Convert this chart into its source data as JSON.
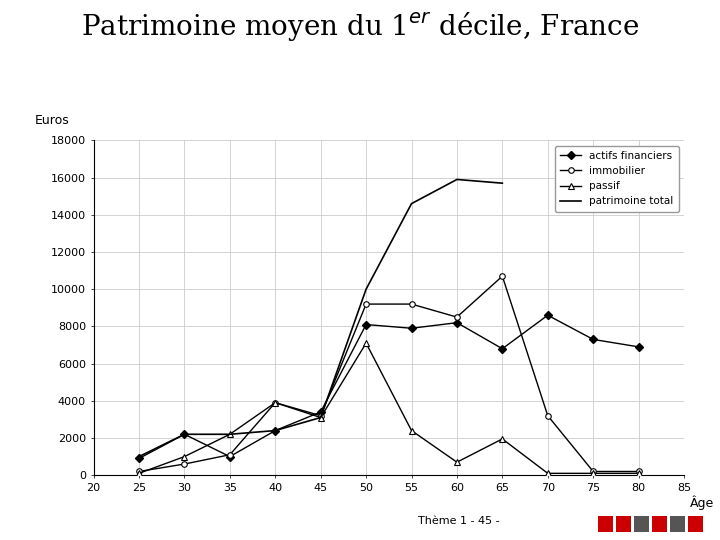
{
  "xlabel": "Âge",
  "ylabel": "Euros",
  "x": [
    20,
    25,
    30,
    35,
    40,
    45,
    50,
    55,
    60,
    65,
    70,
    75,
    80,
    85
  ],
  "actifs_financiers": [
    null,
    900,
    2200,
    1000,
    2400,
    3400,
    8100,
    7900,
    8200,
    6800,
    8600,
    7300,
    6900,
    null
  ],
  "immobilier": [
    null,
    200,
    600,
    1100,
    3900,
    3200,
    9200,
    9200,
    8500,
    10700,
    3200,
    200,
    200,
    null
  ],
  "passif": [
    null,
    100,
    1000,
    2200,
    3900,
    3100,
    7100,
    2400,
    700,
    1950,
    100,
    100,
    100,
    null
  ],
  "patrimoine_total": [
    null,
    1000,
    2200,
    2200,
    2400,
    3100,
    10000,
    14600,
    15900,
    15700,
    null,
    null,
    null,
    null
  ],
  "ylim": [
    0,
    18000
  ],
  "xlim": [
    20,
    85
  ],
  "yticks": [
    0,
    2000,
    4000,
    6000,
    8000,
    10000,
    12000,
    14000,
    16000,
    18000
  ],
  "xticks": [
    20,
    25,
    30,
    35,
    40,
    45,
    50,
    55,
    60,
    65,
    70,
    75,
    80,
    85
  ],
  "bg_color": "#ffffff",
  "grid_color": "#cccccc",
  "footer": "Thème 1 - 45 -",
  "footer_squares": [
    "#cc0000",
    "#cc0000",
    "#555555",
    "#cc0000",
    "#555555",
    "#cc0000"
  ]
}
